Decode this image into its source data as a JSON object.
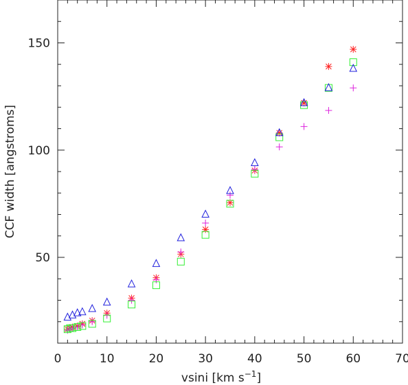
{
  "chart_data": {
    "type": "scatter",
    "xlabel": "vsini [km s",
    "xlabel_sup": "−1",
    "xlabel_end": "]",
    "ylabel": "CCF width [angstroms]",
    "xlim": [
      0,
      70
    ],
    "ylim": [
      10,
      170
    ],
    "x_ticks": [
      0,
      10,
      20,
      30,
      40,
      50,
      60,
      70
    ],
    "y_ticks": [
      50,
      100,
      150
    ],
    "x_tick_labels": [
      "0",
      "10",
      "20",
      "30",
      "40",
      "50",
      "60",
      "70"
    ],
    "y_tick_labels": [
      "50",
      "100",
      "150"
    ],
    "grid": false,
    "series": [
      {
        "marker": "asterisk",
        "color": "#ff2222",
        "x": [
          2,
          2.5,
          3,
          4,
          5,
          7,
          10,
          15,
          20,
          25,
          30,
          35,
          40,
          45,
          50,
          55,
          60
        ],
        "y": [
          16.5,
          17,
          17.5,
          18,
          19,
          20.5,
          24,
          31,
          40.5,
          51.5,
          63,
          75.5,
          90.5,
          108,
          122,
          139,
          147
        ]
      },
      {
        "marker": "plus",
        "color": "#dd22dd",
        "x": [
          2,
          2.5,
          3,
          4,
          5,
          7,
          10,
          15,
          20,
          25,
          30,
          35,
          40,
          45,
          50,
          55,
          60
        ],
        "y": [
          16,
          16.5,
          17,
          17.5,
          18.5,
          20,
          23,
          30,
          39.5,
          52.5,
          66,
          79,
          91,
          101.5,
          111,
          118.5,
          129
        ]
      },
      {
        "marker": "square",
        "color": "#33ee33",
        "x": [
          2,
          2.5,
          3,
          4,
          5,
          7,
          10,
          15,
          20,
          25,
          30,
          35,
          40,
          45,
          50,
          55,
          60
        ],
        "y": [
          16.5,
          17,
          17,
          17.5,
          18,
          19,
          21.5,
          28,
          37,
          48,
          60.5,
          75,
          89,
          106,
          121,
          129,
          141
        ]
      },
      {
        "marker": "triangle",
        "color": "#2222dd",
        "x": [
          2,
          3,
          4,
          5,
          7,
          10,
          15,
          20,
          25,
          30,
          35,
          40,
          45,
          50,
          55,
          60
        ],
        "y": [
          22,
          23,
          24,
          24.5,
          26,
          29,
          37.5,
          47,
          59,
          70,
          81,
          94,
          108,
          122,
          129,
          138
        ]
      }
    ]
  }
}
